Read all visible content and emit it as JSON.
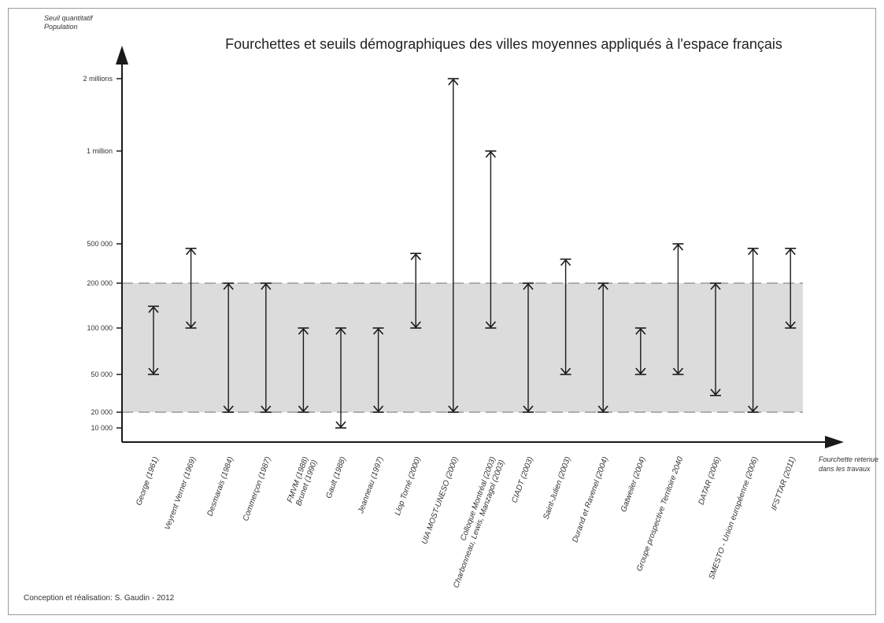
{
  "chart_data": {
    "type": "range",
    "title": "Fourchettes et seuils démographiques des villes moyennes appliqués à l'espace français",
    "ylabel_lines": [
      "Seuil quantitatif",
      "Population"
    ],
    "xlabel_lines": [
      "Fourchette retenue",
      "dans les travaux"
    ],
    "credit": "Conception et réalisation: S. Gaudin - 2012",
    "y_ticks": [
      {
        "value": 10000,
        "label": "10 000"
      },
      {
        "value": 20000,
        "label": "20 000"
      },
      {
        "value": 50000,
        "label": "50 000"
      },
      {
        "value": 100000,
        "label": "100 000"
      },
      {
        "value": 200000,
        "label": "200 000"
      },
      {
        "value": 500000,
        "label": "500 000"
      },
      {
        "value": 1000000,
        "label": "1 million"
      },
      {
        "value": 2000000,
        "label": "2 millions"
      }
    ],
    "retained_range": [
      20000,
      200000
    ],
    "band_color": "#dcdcdc",
    "line_color": "#1a1a1a",
    "categories": [
      {
        "label": [
          "George (1961)"
        ],
        "min": 50000,
        "max": 140000
      },
      {
        "label": [
          "Veyrent Verner (1969)"
        ],
        "min": 100000,
        "max": 450000
      },
      {
        "label": [
          "Desmarais (1984)"
        ],
        "min": 20000,
        "max": 200000
      },
      {
        "label": [
          "Commerçon (1987)"
        ],
        "min": 20000,
        "max": 200000
      },
      {
        "label": [
          "FMVM (1988)",
          "Brunet (1990)"
        ],
        "min": 20000,
        "max": 100000
      },
      {
        "label": [
          "Gault (1988)"
        ],
        "min": 10000,
        "max": 100000
      },
      {
        "label": [
          "Jeanneau (1997)"
        ],
        "min": 20000,
        "max": 100000
      },
      {
        "label": [
          "Llop Torné (2000)"
        ],
        "min": 100000,
        "max": 400000
      },
      {
        "label": [
          "UIA MOST-UNESO (2000)"
        ],
        "min": 20000,
        "max": 2000000
      },
      {
        "label": [
          "Colloque Montréal (2003)",
          "Charbonneau, Lewis, Manzagol (2003)"
        ],
        "min": 100000,
        "max": 1000000
      },
      {
        "label": [
          "CIADT (2003)"
        ],
        "min": 20000,
        "max": 200000
      },
      {
        "label": [
          "Saint-Julien (2003)"
        ],
        "min": 50000,
        "max": 350000
      },
      {
        "label": [
          "Durand et Ravenel (2004)"
        ],
        "min": 20000,
        "max": 200000
      },
      {
        "label": [
          "Gatweiler (2004)"
        ],
        "min": 50000,
        "max": 100000
      },
      {
        "label": [
          "Groupe prospective Territoire 2040"
        ],
        "min": 50000,
        "max": 500000
      },
      {
        "label": [
          "DATAR (2006)"
        ],
        "min": 30000,
        "max": 200000
      },
      {
        "label": [
          "SMESTO - Union européenne (2006)"
        ],
        "min": 20000,
        "max": 450000
      },
      {
        "label": [
          "IFSTTAR (2011)"
        ],
        "min": 100000,
        "max": 450000
      }
    ]
  }
}
